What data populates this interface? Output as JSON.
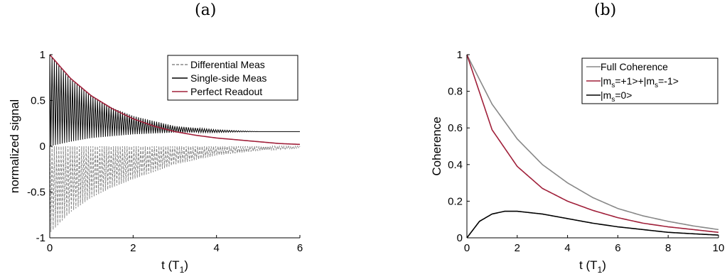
{
  "chart_data": [
    {
      "type": "line",
      "panel_label": "(a)",
      "xlabel": "t (T",
      "xlabel_sub": "1",
      "ylabel": "normalized signal",
      "xlim": [
        0,
        6
      ],
      "ylim": [
        -1,
        1
      ],
      "xticks": [
        "0",
        "2",
        "4",
        "6"
      ],
      "xtick_values": [
        0,
        2,
        4,
        6
      ],
      "yticks": [
        "-1",
        "-0.5",
        "0",
        "0.5",
        "1"
      ],
      "ytick_values": [
        -1,
        -0.5,
        0,
        0.5,
        1
      ],
      "legend_position": "top-right",
      "series": [
        {
          "name": "Differential Meas",
          "color": "#888888",
          "style": "dashed",
          "x": [
            0,
            0.5,
            1,
            1.5,
            2,
            3,
            4,
            5,
            6
          ],
          "envelope_upper": [
            0,
            0,
            0,
            0,
            0,
            0,
            0,
            0,
            0
          ],
          "envelope_lower": [
            -0.95,
            -0.72,
            -0.56,
            -0.45,
            -0.36,
            -0.2,
            -0.1,
            -0.05,
            -0.02
          ]
        },
        {
          "name": "Single-side Meas",
          "color": "#000000",
          "style": "solid",
          "x": [
            0,
            0.5,
            1,
            1.5,
            2,
            3,
            4,
            5,
            6
          ],
          "envelope_upper": [
            1.0,
            0.73,
            0.55,
            0.42,
            0.33,
            0.22,
            0.18,
            0.16,
            0.16
          ],
          "envelope_lower": [
            0.0,
            0.05,
            0.09,
            0.11,
            0.13,
            0.15,
            0.15,
            0.16,
            0.16
          ]
        },
        {
          "name": "Perfect Readout",
          "color": "#a0203a",
          "style": "solid",
          "x": [
            0,
            0.5,
            1,
            1.5,
            2,
            2.5,
            3,
            3.5,
            4,
            4.5,
            5,
            5.5,
            6
          ],
          "y": [
            1.0,
            0.74,
            0.55,
            0.41,
            0.3,
            0.22,
            0.16,
            0.12,
            0.09,
            0.07,
            0.05,
            0.03,
            0.02
          ]
        }
      ]
    },
    {
      "type": "line",
      "panel_label": "(b)",
      "xlabel": "t (T",
      "xlabel_sub": "1",
      "ylabel": "Coherence",
      "xlim": [
        0,
        10
      ],
      "ylim": [
        0,
        1
      ],
      "xticks": [
        "0",
        "2",
        "4",
        "6",
        "8",
        "10"
      ],
      "xtick_values": [
        0,
        2,
        4,
        6,
        8,
        10
      ],
      "yticks": [
        "0",
        "0.2",
        "0.4",
        "0.6",
        "0.8",
        "1"
      ],
      "ytick_values": [
        0,
        0.2,
        0.4,
        0.6,
        0.8,
        1
      ],
      "legend_position": "top-right",
      "series": [
        {
          "name": "Full Coherence",
          "color": "#888888",
          "x": [
            0,
            1,
            2,
            3,
            4,
            5,
            6,
            7,
            8,
            9,
            10
          ],
          "y": [
            1.0,
            0.73,
            0.54,
            0.4,
            0.3,
            0.22,
            0.16,
            0.12,
            0.09,
            0.065,
            0.045
          ]
        },
        {
          "name": "|m_s=+1>+|m_s=-1>",
          "color": "#a0203a",
          "x": [
            0,
            1,
            2,
            3,
            4,
            5,
            6,
            7,
            8,
            9,
            10
          ],
          "y": [
            1.0,
            0.59,
            0.39,
            0.27,
            0.2,
            0.15,
            0.11,
            0.08,
            0.06,
            0.045,
            0.03
          ]
        },
        {
          "name": "|m_s=0>",
          "color": "#000000",
          "x": [
            0,
            0.5,
            1,
            1.5,
            2,
            3,
            4,
            5,
            6,
            7,
            8,
            9,
            10
          ],
          "y": [
            0,
            0.09,
            0.13,
            0.145,
            0.145,
            0.13,
            0.105,
            0.08,
            0.06,
            0.045,
            0.03,
            0.022,
            0.015
          ]
        }
      ],
      "legend_labels": [
        {
          "parts": [
            "Full Coherence"
          ]
        },
        {
          "parts": [
            "|m",
            "s",
            "=+1>+|m",
            "s",
            "=-1>"
          ]
        },
        {
          "parts": [
            "|m",
            "s",
            "=0>"
          ]
        }
      ]
    }
  ]
}
